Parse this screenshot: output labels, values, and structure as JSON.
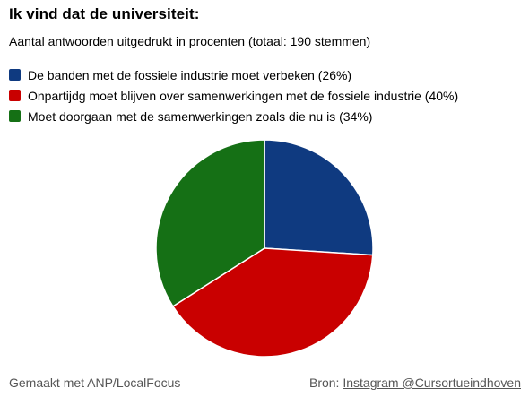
{
  "title": "Ik vind dat de universiteit:",
  "subtitle": "Aantal antwoorden uitgedrukt in procenten (totaal: 190 stemmen)",
  "chart_data": {
    "type": "pie",
    "series": [
      {
        "name": "De banden met de fossiele industrie moet verbeken (26%)",
        "value": 26,
        "color": "#0f3a80"
      },
      {
        "name": "Onpartijdg moet blijven over samenwerkingen met de fossiele industrie (40%)",
        "value": 40,
        "color": "#c90000"
      },
      {
        "name": "Moet doorgaan met de samenwerkingen zoals die nu is (34%)",
        "value": 34,
        "color": "#157015"
      }
    ]
  },
  "footer": {
    "made_with": "Gemaakt met ANP/LocalFocus",
    "source_label": "Bron:",
    "source_link": "Instagram @Cursortueindhoven"
  }
}
